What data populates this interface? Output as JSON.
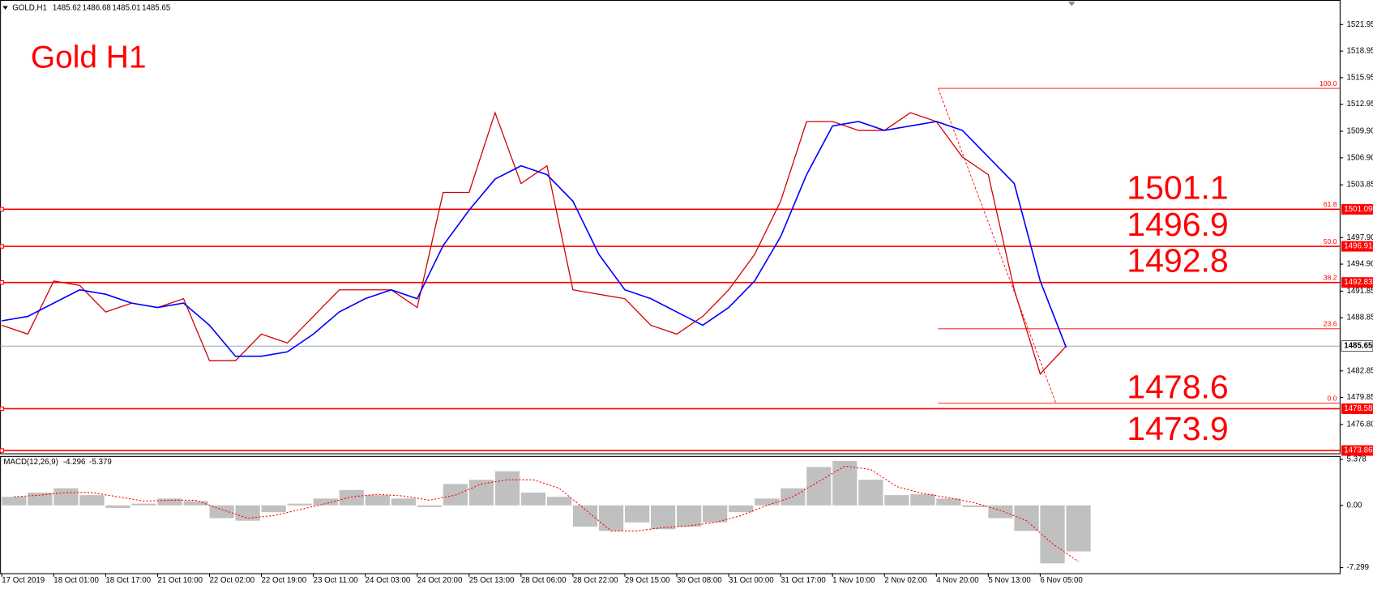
{
  "chart_data": {
    "type": "line",
    "header": "GOLD,H1",
    "ohlc": [
      1485.62,
      1486.68,
      1485.01,
      1485.65
    ],
    "title": "Gold H1",
    "categories": [
      "17 Oct 2019",
      null,
      "18 Oct 01:00",
      null,
      "18 Oct 17:00",
      null,
      "21 Oct 10:00",
      null,
      "22 Oct 02:00",
      null,
      "22 Oct 19:00",
      null,
      "23 Oct 11:00",
      null,
      "24 Oct 03:00",
      null,
      "24 Oct 20:00",
      null,
      "25 Oct 13:00",
      null,
      "28 Oct 06:00",
      null,
      "28 Oct 22:00",
      null,
      "29 Oct 15:00",
      null,
      "30 Oct 08:00",
      null,
      "31 Oct 00:00",
      null,
      "31 Oct 17:00",
      null,
      "1 Nov 10:00",
      null,
      "2 Nov 02:00",
      null,
      "4 Nov 20:00",
      null,
      "5 Nov 13:00",
      null,
      "6 Nov 05:00",
      null
    ],
    "series": [
      {
        "color": "#d00000",
        "values": [
          1488.0,
          1487.0,
          1493.0,
          1492.5,
          1489.5,
          1490.5,
          1490.0,
          1491.0,
          1484.0,
          1484.0,
          1487.0,
          1486.0,
          1489.0,
          1492.0,
          1492.0,
          1492.0,
          1490.0,
          1503.0,
          1503.0,
          1512.0,
          1504.0,
          1506.0,
          1492.0,
          1491.5,
          1491.0,
          1488.0,
          1487.0,
          1489.0,
          1492.0,
          1496.0,
          1502.0,
          1511.0,
          1511.0,
          1510.0,
          1510.0,
          1512.0,
          1511.0,
          1507.0,
          1505.0,
          1492.0,
          1482.5,
          1485.65
        ]
      },
      {
        "color": "#0000ff",
        "values": [
          1488.5,
          1489.0,
          1490.5,
          1492.0,
          1491.5,
          1490.5,
          1490.0,
          1490.5,
          1488.0,
          1484.5,
          1484.5,
          1485.0,
          1487.0,
          1489.5,
          1491.0,
          1492.0,
          1491.0,
          1497.0,
          1501.0,
          1504.5,
          1506.0,
          1505.0,
          1502.0,
          1496.0,
          1492.0,
          1491.0,
          1489.5,
          1488.0,
          1490.0,
          1493.0,
          1498.0,
          1505.0,
          1510.5,
          1511.0,
          1510.0,
          1510.5,
          1511.0,
          1510.0,
          1507.0,
          1504.0,
          1493.0,
          1485.5
        ]
      }
    ],
    "ylim": [
      1473.54,
      1524.72
    ],
    "yticks": [
      1521.95,
      1518.95,
      1515.95,
      1512.95,
      {
        "value": 1509.9,
        "label": "1509.90"
      },
      {
        "value": 1506.9,
        "label": "1506.90"
      },
      1503.85,
      {
        "value": 1497.9,
        "label": "1497.90"
      },
      {
        "value": 1494.9,
        "label": "1494.90"
      },
      1491.85,
      1488.85,
      1482.85,
      1479.85,
      {
        "value": 1476.8,
        "label": "1476.80"
      }
    ],
    "current_price": 1485.65,
    "levels": [
      {
        "value": 1501.09,
        "label": "1501.1"
      },
      {
        "value": 1496.91,
        "label": "1496.9"
      },
      {
        "value": 1492.83,
        "label": "1492.8"
      },
      {
        "value": 1478.58,
        "label": "1478.6"
      },
      {
        "value": 1473.86,
        "label": "1473.9"
      }
    ],
    "fibonacci": [
      {
        "level": "100.0",
        "value": 1514.74
      },
      {
        "level": "61.8",
        "value": 1501.09
      },
      {
        "level": "50.0",
        "value": 1496.91
      },
      {
        "level": "38.2",
        "value": 1492.83
      },
      {
        "level": "23.6",
        "value": 1487.6
      },
      {
        "level": "0.0",
        "value": 1479.2
      }
    ],
    "macd": {
      "label": "MACD(12,26,9)",
      "readout": [
        -4.296,
        -5.379
      ],
      "histogram": [
        1.0,
        1.5,
        2.0,
        1.2,
        -0.3,
        0.2,
        0.8,
        0.5,
        -1.5,
        -1.8,
        -0.8,
        0.2,
        0.8,
        1.8,
        1.2,
        0.8,
        -0.2,
        2.5,
        3.0,
        4.0,
        1.5,
        1.0,
        -2.5,
        -3.0,
        -2.0,
        -2.8,
        -2.5,
        -2.0,
        -0.8,
        0.8,
        2.0,
        4.5,
        5.2,
        3.0,
        1.2,
        1.3,
        0.8,
        -0.2,
        -1.5,
        -3.0,
        -6.8,
        -5.4
      ],
      "signal": [
        1.0,
        1.2,
        1.5,
        1.5,
        1.0,
        0.5,
        0.6,
        0.6,
        -0.5,
        -1.5,
        -1.2,
        -0.5,
        0.2,
        1.0,
        1.3,
        1.1,
        0.6,
        1.2,
        2.5,
        3.0,
        3.0,
        2.0,
        -0.5,
        -3.0,
        -3.0,
        -2.6,
        -2.4,
        -2.0,
        -1.2,
        0,
        1.0,
        2.8,
        4.6,
        4.2,
        2.2,
        1.4,
        0.9,
        0.3,
        -0.6,
        -1.8,
        -4.5,
        -6.6
      ],
      "ylim": [
        -7.96,
        5.79
      ],
      "yticks": [
        5.378,
        {
          "value": 0,
          "label": "0.00"
        },
        -7.299
      ]
    }
  }
}
